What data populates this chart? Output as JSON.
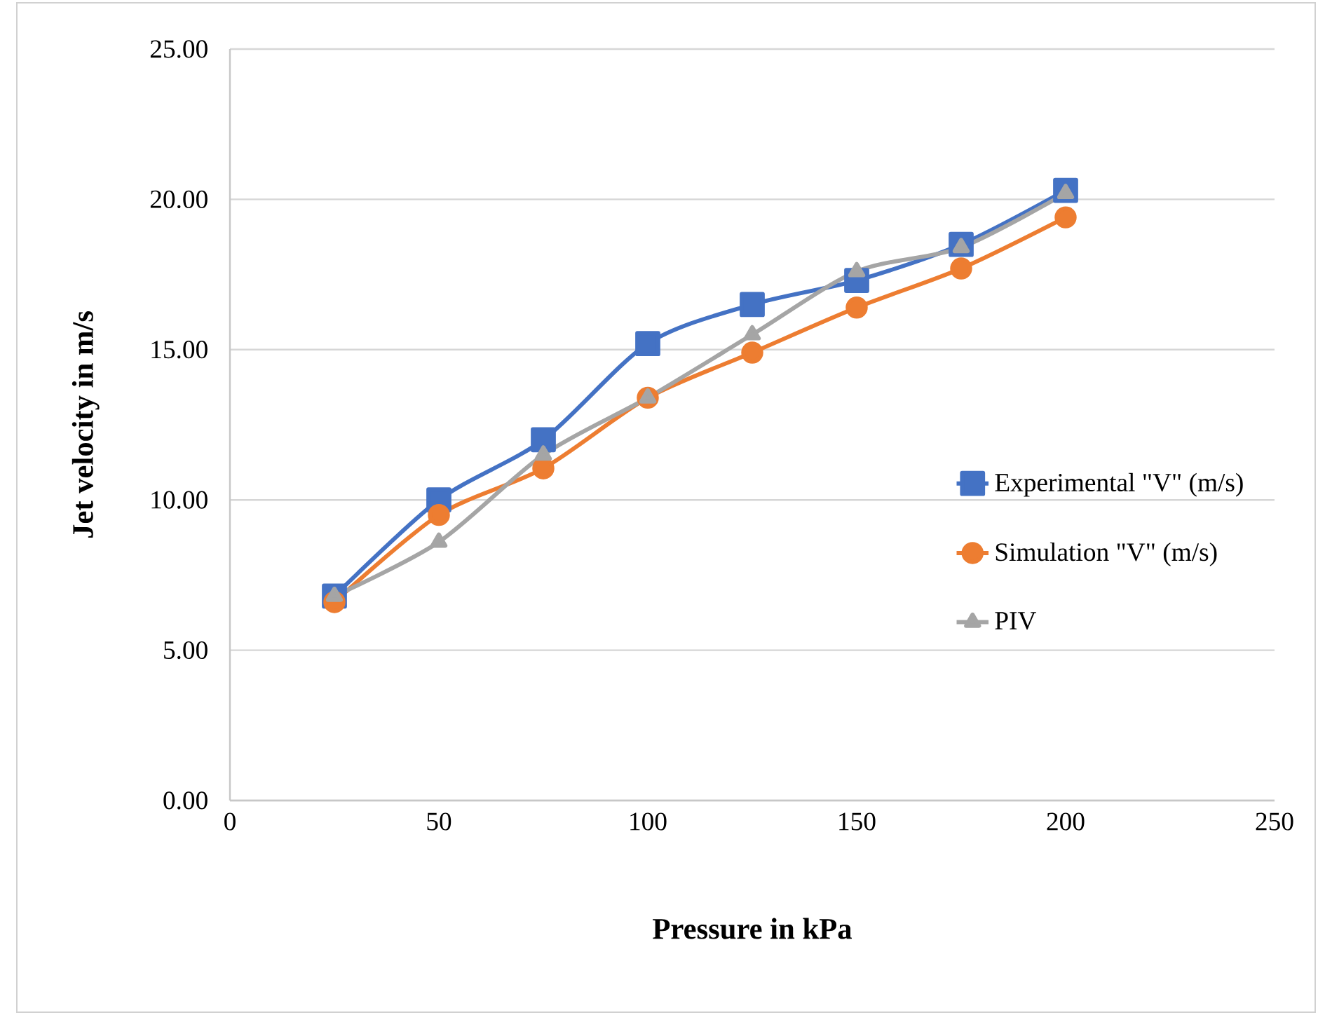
{
  "chart_data": {
    "type": "line",
    "xlabel": "Pressure in kPa",
    "ylabel": "Jet velocity in m/s",
    "x": [
      25,
      50,
      75,
      100,
      125,
      150,
      175,
      200
    ],
    "series": [
      {
        "name": "Experimental \"V\" (m/s)",
        "color": "#4472c4",
        "marker": "square",
        "values": [
          6.8,
          10.0,
          12.0,
          15.2,
          16.5,
          17.3,
          18.5,
          20.3
        ]
      },
      {
        "name": "Simulation \"V\" (m/s)",
        "color": "#ed7d31",
        "marker": "circle",
        "values": [
          6.6,
          9.5,
          11.05,
          13.4,
          14.9,
          16.4,
          17.7,
          19.4
        ]
      },
      {
        "name": "PIV",
        "color": "#a5a5a5",
        "marker": "triangle",
        "values": [
          6.8,
          8.6,
          11.5,
          13.4,
          15.5,
          17.6,
          18.4,
          20.2
        ]
      }
    ],
    "xlim": [
      0,
      250
    ],
    "xticks": [
      0,
      50,
      100,
      150,
      200,
      250
    ],
    "ylim": [
      0,
      25
    ],
    "yticks": [
      {
        "value": 0,
        "label": "0.00"
      },
      {
        "value": 5,
        "label": "5.00"
      },
      {
        "value": 10,
        "label": "10.00"
      },
      {
        "value": 15,
        "label": "15.00"
      },
      {
        "value": 20,
        "label": "20.00"
      },
      {
        "value": 25,
        "label": "25.00"
      }
    ],
    "grid": "y",
    "legend": "right",
    "line_style": "solid"
  }
}
